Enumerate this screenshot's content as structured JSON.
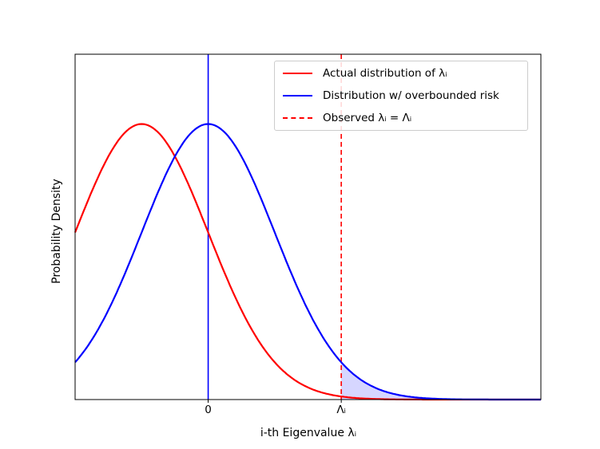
{
  "figure": {
    "background": "#ffffff",
    "text_color": "#000000"
  },
  "chart_data": {
    "type": "line",
    "xlabel": "i-th Eigenvalue λᵢ",
    "ylabel": "Probability Density",
    "xlim": [
      -2,
      5
    ],
    "ylim": [
      0,
      0.5
    ],
    "grid": false,
    "spine_color": "#000000",
    "xticks": [
      {
        "value": 0,
        "label": "0"
      },
      {
        "value": 2,
        "label": "Λᵢ"
      }
    ],
    "yticks": [],
    "series": [
      {
        "name": "Actual distribution of λᵢ",
        "curve": "gaussian_pdf",
        "mean": -1,
        "std": 1,
        "peak_density": 0.399,
        "color": "#ff0000",
        "line_style": "solid",
        "line_width": 2.2
      },
      {
        "name": "Distribution w/ overbounded risk",
        "curve": "gaussian_pdf",
        "mean": 0,
        "std": 1,
        "peak_density": 0.399,
        "color": "#0000ff",
        "line_style": "solid",
        "line_width": 2.2
      }
    ],
    "vlines": [
      {
        "x": 0,
        "color": "#0000ff",
        "line_style": "solid",
        "line_width": 1.6
      },
      {
        "x": 2,
        "color": "#ff0000",
        "line_style": "dashed",
        "line_width": 1.6
      }
    ],
    "shaded_region": {
      "series_index": 1,
      "x_from": 2,
      "x_to": 5,
      "fill_color": "#0000ff",
      "fill_opacity": 0.16
    }
  },
  "legend": {
    "position": "upper right",
    "border_color": "#cccccc",
    "background": "rgba(255,255,255,0.85)",
    "entries": [
      {
        "label": "Actual distribution of λᵢ",
        "color": "#ff0000",
        "line_style": "solid"
      },
      {
        "label": "Distribution w/ overbounded risk",
        "color": "#0000ff",
        "line_style": "solid"
      },
      {
        "label": "Observed λᵢ = Λᵢ",
        "color": "#ff0000",
        "line_style": "dashed"
      }
    ]
  }
}
